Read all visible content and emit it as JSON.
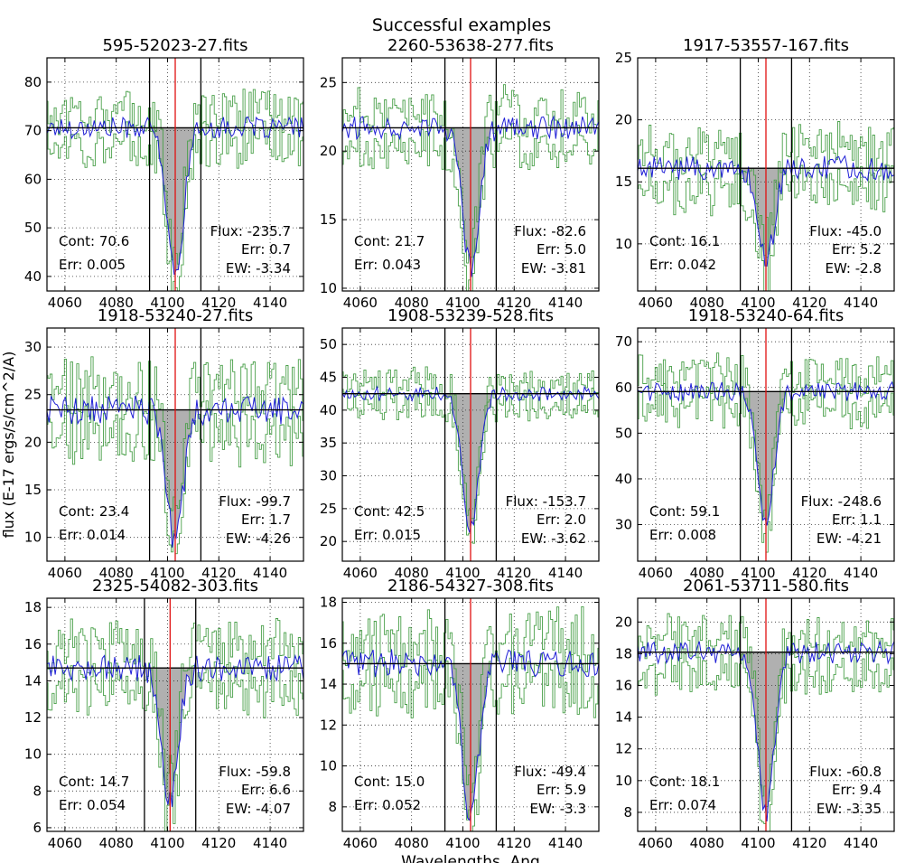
{
  "figure": {
    "suptitle": "Successful examples",
    "xlabel": "Wavelengths, Ang",
    "ylabel": "flux (E-17 ergs/s/cm^2/A)"
  },
  "colors": {
    "model": "#1f1fd6",
    "data": "#4aa04a",
    "line_marker": "#e01010",
    "continuum": "#000000",
    "fill": "#b0b0b0"
  },
  "chart_data": [
    {
      "type": "line",
      "title": "595-52023-27.fits",
      "xlim": [
        4053,
        4153
      ],
      "ylim": [
        37,
        85
      ],
      "yticks": [
        40,
        50,
        60,
        70,
        80
      ],
      "xticks": [
        4060,
        4080,
        4100,
        4120,
        4140
      ],
      "continuum": 70.6,
      "line_center": 4103,
      "window": [
        4093,
        4113
      ],
      "min_flux": 40,
      "noise": 4,
      "cont_label": "Cont: 70.6",
      "cont_err_label": "Err: 0.005",
      "flux_label": "Flux: -235.7",
      "flux_err_label": "Err: 0.7",
      "ew_label": "EW: -3.34"
    },
    {
      "type": "line",
      "title": "2260-53638-277.fits",
      "xlim": [
        4053,
        4153
      ],
      "ylim": [
        9.8,
        26.8
      ],
      "yticks": [
        10,
        15,
        20,
        25
      ],
      "xticks": [
        4060,
        4080,
        4100,
        4120,
        4140
      ],
      "continuum": 21.7,
      "line_center": 4103,
      "window": [
        4093,
        4113
      ],
      "min_flux": 11.5,
      "noise": 1.5,
      "cont_label": "Cont: 21.7",
      "cont_err_label": "Err: 0.043",
      "flux_label": "Flux: -82.6",
      "flux_err_label": "Err: 5.0",
      "ew_label": "EW: -3.81"
    },
    {
      "type": "line",
      "title": "1917-53557-167.fits",
      "xlim": [
        4053,
        4153
      ],
      "ylim": [
        6.2,
        25
      ],
      "yticks": [
        10,
        15,
        20,
        25
      ],
      "xticks": [
        4060,
        4080,
        4100,
        4120,
        4140
      ],
      "continuum": 16.1,
      "line_center": 4103,
      "window": [
        4093,
        4113
      ],
      "min_flux": 8.5,
      "noise": 1.8,
      "cont_label": "Cont: 16.1",
      "cont_err_label": "Err: 0.042",
      "flux_label": "Flux: -45.0",
      "flux_err_label": "Err: 5.2",
      "ew_label": "EW: -2.8"
    },
    {
      "type": "line",
      "title": "1918-53240-27.fits",
      "xlim": [
        4053,
        4153
      ],
      "ylim": [
        7.5,
        32
      ],
      "yticks": [
        10,
        15,
        20,
        25,
        30
      ],
      "xticks": [
        4060,
        4080,
        4100,
        4120,
        4140
      ],
      "continuum": 23.4,
      "line_center": 4103,
      "window": [
        4093,
        4113
      ],
      "min_flux": 9.5,
      "noise": 2.8,
      "cont_label": "Cont: 23.4",
      "cont_err_label": "Err: 0.014",
      "flux_label": "Flux: -99.7",
      "flux_err_label": "Err: 1.7",
      "ew_label": "EW: -4.26"
    },
    {
      "type": "line",
      "title": "1908-53239-528.fits",
      "xlim": [
        4053,
        4153
      ],
      "ylim": [
        17,
        52.5
      ],
      "yticks": [
        20,
        25,
        30,
        35,
        40,
        45,
        50
      ],
      "xticks": [
        4060,
        4080,
        4100,
        4120,
        4140
      ],
      "continuum": 42.5,
      "line_center": 4103,
      "window": [
        4093,
        4113
      ],
      "min_flux": 22,
      "noise": 2,
      "cont_label": "Cont: 42.5",
      "cont_err_label": "Err: 0.015",
      "flux_label": "Flux: -153.7",
      "flux_err_label": "Err: 2.0",
      "ew_label": "EW: -3.62"
    },
    {
      "type": "line",
      "title": "1918-53240-64.fits",
      "xlim": [
        4053,
        4153
      ],
      "ylim": [
        22,
        73
      ],
      "yticks": [
        30,
        40,
        50,
        60,
        70
      ],
      "xticks": [
        4060,
        4080,
        4100,
        4120,
        4140
      ],
      "continuum": 59.1,
      "line_center": 4103,
      "window": [
        4093,
        4113
      ],
      "min_flux": 31,
      "noise": 4,
      "cont_label": "Cont: 59.1",
      "cont_err_label": "Err: 0.008",
      "flux_label": "Flux: -248.6",
      "flux_err_label": "Err: 1.1",
      "ew_label": "EW: -4.21"
    },
    {
      "type": "line",
      "title": "2325-54082-303.fits",
      "xlim": [
        4053,
        4153
      ],
      "ylim": [
        5.8,
        18.5
      ],
      "yticks": [
        6,
        8,
        10,
        12,
        14,
        16,
        18
      ],
      "xticks": [
        4060,
        4080,
        4100,
        4120,
        4140
      ],
      "continuum": 14.7,
      "line_center": 4101,
      "window": [
        4091,
        4111
      ],
      "min_flux": 7.5,
      "noise": 1.3,
      "cont_label": "Cont: 14.7",
      "cont_err_label": "Err: 0.054",
      "flux_label": "Flux: -59.8",
      "flux_err_label": "Err: 6.6",
      "ew_label": "EW: -4.07"
    },
    {
      "type": "line",
      "title": "2186-54327-308.fits",
      "xlim": [
        4053,
        4153
      ],
      "ylim": [
        6.8,
        18.2
      ],
      "yticks": [
        8,
        10,
        12,
        14,
        16,
        18
      ],
      "xticks": [
        4060,
        4080,
        4100,
        4120,
        4140
      ],
      "continuum": 15.0,
      "line_center": 4103,
      "window": [
        4093,
        4113
      ],
      "min_flux": 7.5,
      "noise": 1.3,
      "cont_label": "Cont: 15.0",
      "cont_err_label": "Err: 0.052",
      "flux_label": "Flux: -49.4",
      "flux_err_label": "Err: 5.9",
      "ew_label": "EW: -3.3"
    },
    {
      "type": "line",
      "title": "2061-53711-580.fits",
      "xlim": [
        4053,
        4153
      ],
      "ylim": [
        6.8,
        21.5
      ],
      "yticks": [
        8,
        10,
        12,
        14,
        16,
        18,
        20
      ],
      "xticks": [
        4060,
        4080,
        4100,
        4120,
        4140
      ],
      "continuum": 18.1,
      "line_center": 4103,
      "window": [
        4093,
        4113
      ],
      "min_flux": 8,
      "noise": 1.3,
      "cont_label": "Cont: 18.1",
      "cont_err_label": "Err: 0.074",
      "flux_label": "Flux: -60.8",
      "flux_err_label": "Err: 9.4",
      "ew_label": "EW: -3.35"
    }
  ]
}
